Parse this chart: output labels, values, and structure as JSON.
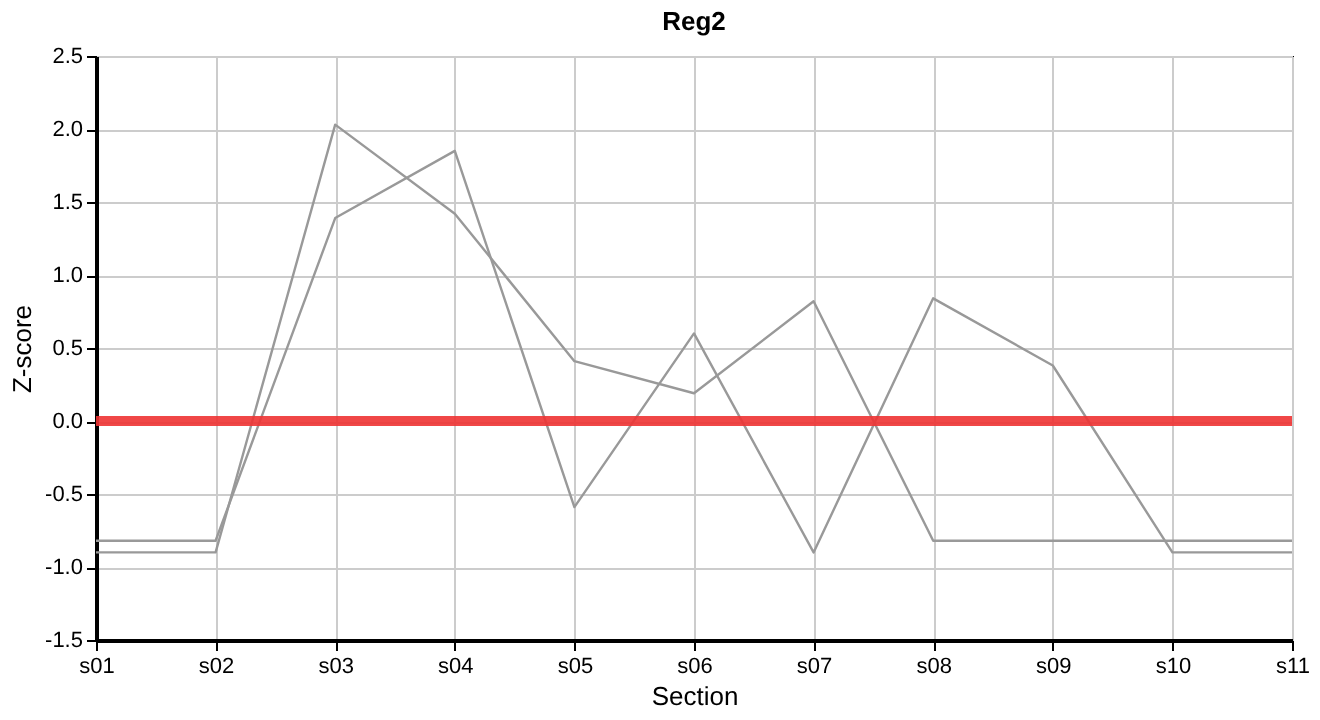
{
  "chart_data": {
    "type": "line",
    "title": "Reg2",
    "xlabel": "Section",
    "ylabel": "Z-score",
    "categories": [
      "s01",
      "s02",
      "s03",
      "s04",
      "s05",
      "s06",
      "s07",
      "s08",
      "s09",
      "s10",
      "s11"
    ],
    "series": [
      {
        "color": "#999999",
        "values": [
          -0.9,
          -0.9,
          2.03,
          1.42,
          0.41,
          0.19,
          0.82,
          -0.82,
          -0.82,
          -0.82,
          -0.82
        ]
      },
      {
        "color": "#999999",
        "values": [
          -0.82,
          -0.82,
          1.39,
          1.85,
          -0.59,
          0.6,
          -0.9,
          0.84,
          0.38,
          -0.9,
          -0.9
        ]
      }
    ],
    "ylim": [
      -1.5,
      2.5
    ],
    "yticks": [
      {
        "value": -1.5,
        "label": "-1.5"
      },
      {
        "value": -1,
        "label": "-1.0"
      },
      {
        "value": -0.5,
        "label": "-0.5"
      },
      {
        "value": 0,
        "label": "0.0"
      },
      {
        "value": 0.5,
        "label": "0.5"
      },
      {
        "value": 1,
        "label": "1.0"
      },
      {
        "value": 1.5,
        "label": "1.5"
      },
      {
        "value": 2,
        "label": "2.0"
      },
      {
        "value": 2.5,
        "label": "2.5"
      }
    ],
    "ref_lines": [
      {
        "axis": "y",
        "value": 0,
        "color": "#ee3333"
      }
    ],
    "grid": true,
    "marker": "none",
    "line_style": "solid"
  }
}
